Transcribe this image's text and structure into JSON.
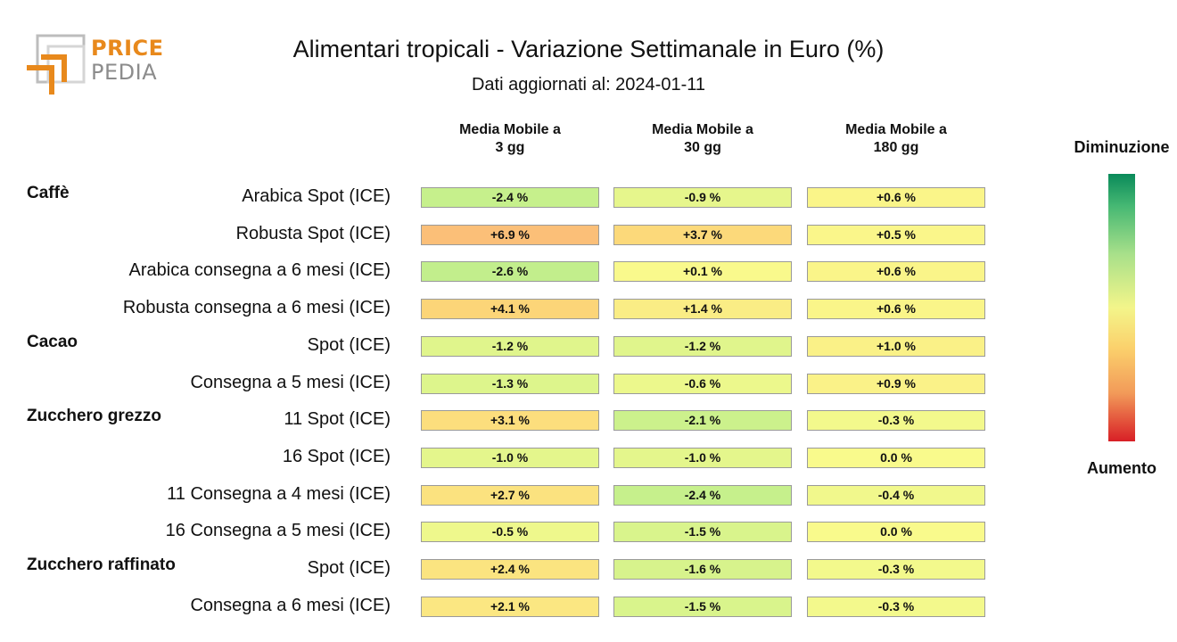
{
  "logo": {
    "line1": "PRICE",
    "line2": "PEDIA"
  },
  "title": "Alimentari tropicali - Variazione Settimanale in Euro (%)",
  "subtitle": "Dati aggiornati al: 2024-01-11",
  "legend": {
    "top_label": "Diminuzione",
    "bottom_label": "Aumento"
  },
  "colors": {
    "decrease": "#0a8a5a",
    "neutral": "#f3f58a",
    "increase": "#d81f26"
  },
  "chart_data": {
    "type": "heatmap",
    "title": "Alimentari tropicali - Variazione Settimanale in Euro (%)",
    "columns": [
      "Media Mobile a\n3 gg",
      "Media Mobile a\n30 gg",
      "Media Mobile a\n180 gg"
    ],
    "groups": [
      {
        "name": "Caffè",
        "rows": [
          {
            "label": "Arabica Spot (ICE)",
            "values": [
              -2.4,
              -0.9,
              0.6
            ],
            "texts": [
              "-2.4 %",
              "-0.9 %",
              "+0.6 %"
            ]
          },
          {
            "label": "Robusta Spot (ICE)",
            "values": [
              6.9,
              3.7,
              0.5
            ],
            "texts": [
              "+6.9 %",
              "+3.7 %",
              "+0.5 %"
            ]
          },
          {
            "label": "Arabica consegna a 6 mesi (ICE)",
            "values": [
              -2.6,
              0.1,
              0.6
            ],
            "texts": [
              "-2.6 %",
              "+0.1 %",
              "+0.6 %"
            ]
          },
          {
            "label": "Robusta consegna a 6 mesi (ICE)",
            "values": [
              4.1,
              1.4,
              0.6
            ],
            "texts": [
              "+4.1 %",
              "+1.4 %",
              "+0.6 %"
            ]
          }
        ]
      },
      {
        "name": "Cacao",
        "rows": [
          {
            "label": "Spot (ICE)",
            "values": [
              -1.2,
              -1.2,
              1.0
            ],
            "texts": [
              "-1.2 %",
              "-1.2 %",
              "+1.0 %"
            ]
          },
          {
            "label": "Consegna a 5 mesi (ICE)",
            "values": [
              -1.3,
              -0.6,
              0.9
            ],
            "texts": [
              "-1.3 %",
              "-0.6 %",
              "+0.9 %"
            ]
          }
        ]
      },
      {
        "name": "Zucchero grezzo",
        "rows": [
          {
            "label": "11 Spot (ICE)",
            "values": [
              3.1,
              -2.1,
              -0.3
            ],
            "texts": [
              "+3.1 %",
              "-2.1 %",
              "-0.3 %"
            ]
          },
          {
            "label": "16 Spot (ICE)",
            "values": [
              -1.0,
              -1.0,
              0.0
            ],
            "texts": [
              "-1.0 %",
              "-1.0 %",
              "0.0 %"
            ]
          },
          {
            "label": "11 Consegna a 4 mesi (ICE)",
            "values": [
              2.7,
              -2.4,
              -0.4
            ],
            "texts": [
              "+2.7 %",
              "-2.4 %",
              "-0.4 %"
            ]
          },
          {
            "label": "16 Consegna a 5 mesi (ICE)",
            "values": [
              -0.5,
              -1.5,
              0.0
            ],
            "texts": [
              "-0.5 %",
              "-1.5 %",
              "0.0 %"
            ]
          }
        ]
      },
      {
        "name": "Zucchero raffinato",
        "rows": [
          {
            "label": "Spot (ICE)",
            "values": [
              2.4,
              -1.6,
              -0.3
            ],
            "texts": [
              "+2.4 %",
              "-1.6 %",
              "-0.3 %"
            ]
          },
          {
            "label": "Consegna a 6 mesi (ICE)",
            "values": [
              2.1,
              -1.5,
              -0.3
            ],
            "texts": [
              "+2.1 %",
              "-1.5 %",
              "-0.3 %"
            ]
          }
        ]
      }
    ],
    "color_scale": {
      "min_label": "Diminuzione",
      "max_label": "Aumento",
      "range": [
        -10,
        10
      ]
    }
  }
}
